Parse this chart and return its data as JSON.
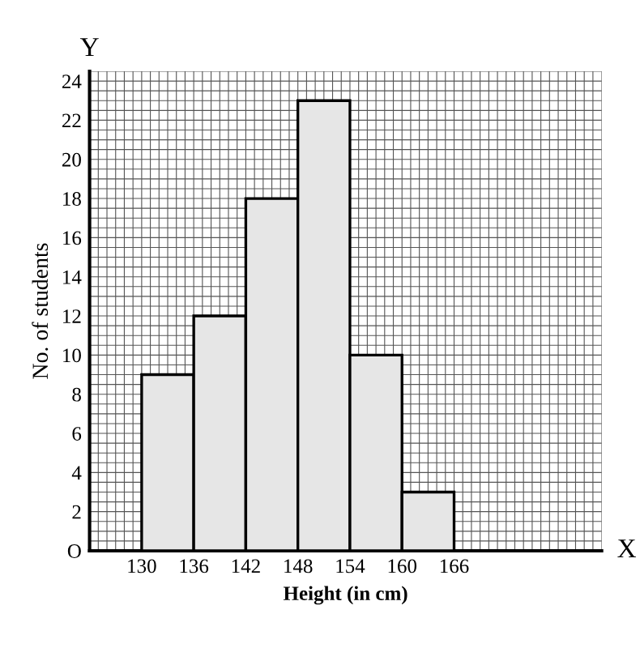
{
  "chart_data": {
    "type": "histogram",
    "xlabel": "Height (in cm)",
    "ylabel": "No. of students",
    "bins": [
      130,
      136,
      142,
      148,
      154,
      160,
      166
    ],
    "values": [
      9,
      12,
      18,
      23,
      10,
      3
    ],
    "color": "#e6e6e6",
    "xlim": [
      124,
      183
    ],
    "ylim": [
      0,
      24.5
    ],
    "xticks": [
      130,
      136,
      142,
      148,
      154,
      160,
      166
    ],
    "yticks": [
      {
        "value": 0,
        "label": "O"
      },
      2,
      4,
      6,
      8,
      10,
      12,
      14,
      16,
      18,
      20,
      22,
      24
    ],
    "grid": true,
    "annotations": [
      "Y",
      "X"
    ]
  }
}
